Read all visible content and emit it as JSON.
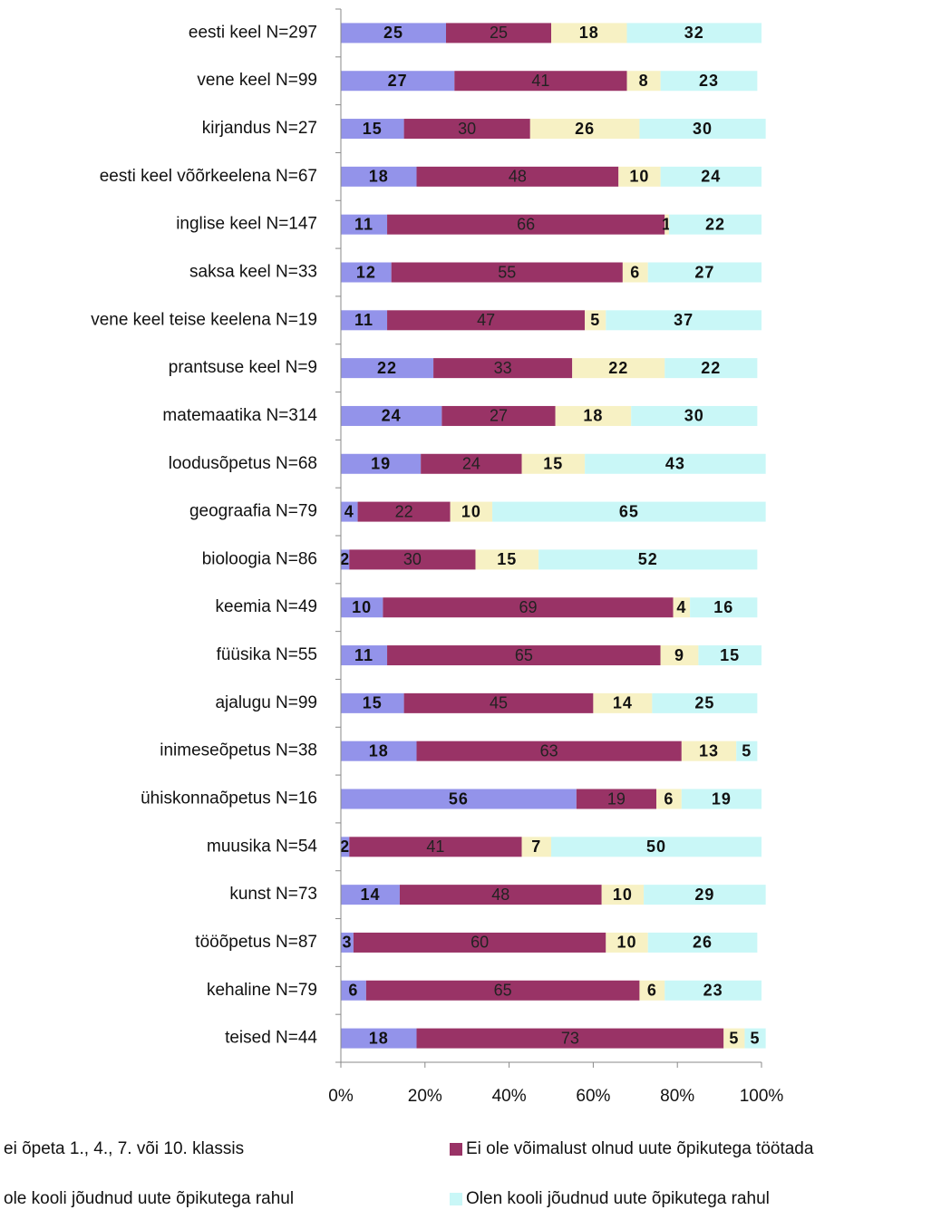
{
  "chart_data": {
    "type": "stacked_barh",
    "categories": [
      "eesti keel N=297",
      "vene keel N=99",
      "kirjandus N=27",
      "eesti keel võõrkeelena N=67",
      "inglise keel N=147",
      "saksa keel N=33",
      "vene keel teise keelena N=19",
      "prantsuse keel N=9",
      "matemaatika N=314",
      "loodusõpetus N=68",
      "geograafia N=79",
      "bioloogia N=86",
      "keemia N=49",
      "füüsika N=55",
      "ajalugu N=99",
      "inimeseõpetus N=38",
      "ühiskonnaõpetus N=16",
      "muusika N=54",
      "kunst N=73",
      "tööõpetus N=87",
      "kehaline N=79",
      "teised N=44"
    ],
    "series": [
      {
        "name": "ei õpeta 1., 4., 7. või 10. klassis",
        "color": "#9393ea",
        "values": [
          25,
          27,
          15,
          18,
          11,
          12,
          11,
          22,
          24,
          19,
          4,
          2,
          10,
          11,
          15,
          18,
          56,
          2,
          14,
          3,
          6,
          18
        ]
      },
      {
        "name": "Ei ole võimalust olnud uute õpikutega töötada",
        "color": "#993366",
        "values": [
          25,
          41,
          30,
          48,
          66,
          55,
          47,
          33,
          27,
          24,
          22,
          30,
          69,
          65,
          45,
          63,
          19,
          41,
          48,
          60,
          65,
          73
        ]
      },
      {
        "name": "ole kooli jõudnud uute õpikutega rahul",
        "color": "#f7f1c4",
        "values": [
          18,
          8,
          26,
          10,
          1,
          6,
          5,
          22,
          18,
          15,
          10,
          15,
          4,
          9,
          14,
          13,
          6,
          7,
          10,
          10,
          6,
          5
        ]
      },
      {
        "name": "Olen kooli jõudnud uute õpikutega rahul",
        "color": "#c9f7f7",
        "values": [
          32,
          23,
          30,
          24,
          22,
          27,
          37,
          22,
          30,
          43,
          65,
          52,
          16,
          15,
          25,
          5,
          19,
          50,
          29,
          26,
          23,
          5
        ]
      }
    ],
    "xlim": [
      0,
      100
    ],
    "xticks": [
      {
        "value": 0,
        "label": "0%"
      },
      {
        "value": 20,
        "label": "20%"
      },
      {
        "value": 40,
        "label": "40%"
      },
      {
        "value": 60,
        "label": "60%"
      },
      {
        "value": 80,
        "label": "80%"
      },
      {
        "value": 100,
        "label": "100%"
      }
    ]
  }
}
